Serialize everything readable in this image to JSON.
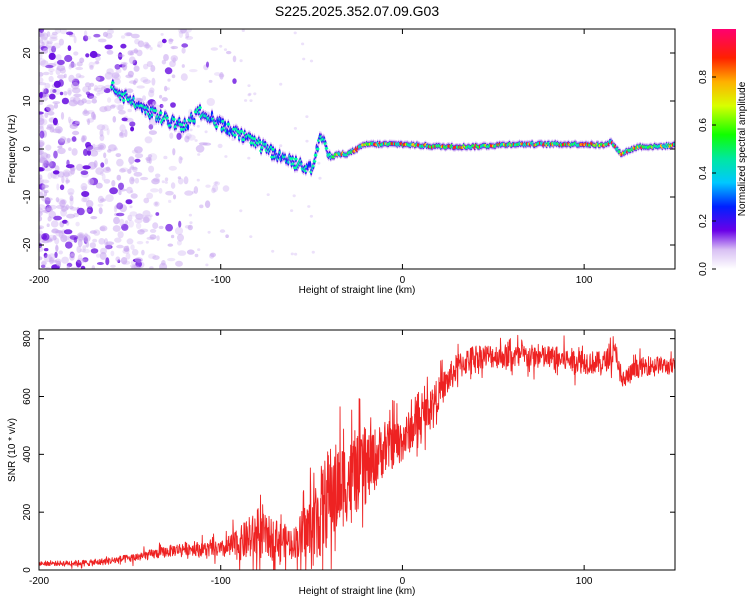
{
  "title": "S225.2025.352.07.09.G03",
  "chart_data": [
    {
      "type": "heatmap",
      "xlabel": "Height of straight line (km)",
      "ylabel": "Frequency (Hz)",
      "xlim": [
        -200,
        150
      ],
      "ylim": [
        -25,
        25
      ],
      "xticks": [
        -200,
        -100,
        0,
        100
      ],
      "yticks": [
        -20,
        -10,
        0,
        10,
        20
      ],
      "colorbar": {
        "label": "Normalized spectral amplitude",
        "range": [
          0,
          1
        ],
        "ticks": [
          0.0,
          0.2,
          0.4,
          0.6,
          0.8
        ]
      },
      "ridge": {
        "x": [
          -160,
          -150,
          -140,
          -130,
          -120,
          -110,
          -100,
          -90,
          -80,
          -70,
          -60,
          -50,
          -45,
          -40,
          -35,
          -30,
          -25,
          -20,
          -10,
          0,
          20,
          40,
          60,
          80,
          100,
          110,
          115,
          120,
          130,
          140,
          150
        ],
        "y": [
          13,
          10,
          8,
          6,
          5,
          8,
          5,
          3,
          1,
          -1,
          -3,
          -4,
          3,
          -2,
          -1,
          -1,
          0,
          1,
          1,
          1,
          0.5,
          0.5,
          1,
          1,
          1,
          0.8,
          1.5,
          -1,
          0.5,
          0.5,
          0.8
        ]
      },
      "noise_region_x": [
        -200,
        -150
      ]
    },
    {
      "type": "line",
      "xlabel": "Height of straight line (km)",
      "ylabel": "SNR (10 * v/v)",
      "xlim": [
        -200,
        150
      ],
      "ylim": [
        0,
        830
      ],
      "xticks": [
        -200,
        -100,
        0,
        100
      ],
      "yticks": [
        0,
        200,
        400,
        600,
        800
      ],
      "color": "#ee2222",
      "trend": {
        "x": [
          -200,
          -170,
          -150,
          -120,
          -100,
          -90,
          -80,
          -70,
          -60,
          -50,
          -40,
          -30,
          -20,
          -10,
          0,
          10,
          20,
          30,
          40,
          60,
          80,
          100,
          110,
          118,
          120,
          130,
          140,
          150
        ],
        "y": [
          22,
          25,
          40,
          75,
          70,
          90,
          120,
          110,
          95,
          140,
          260,
          310,
          350,
          420,
          450,
          520,
          610,
          700,
          740,
          740,
          735,
          720,
          715,
          755,
          650,
          700,
          710,
          700
        ]
      },
      "spread": {
        "x": [
          -200,
          -150,
          -100,
          -80,
          -60,
          -50,
          -40,
          -30,
          -20,
          -10,
          0,
          20,
          40,
          100,
          150
        ],
        "y": [
          10,
          20,
          40,
          120,
          70,
          200,
          250,
          200,
          180,
          130,
          110,
          80,
          60,
          60,
          40
        ]
      }
    }
  ]
}
